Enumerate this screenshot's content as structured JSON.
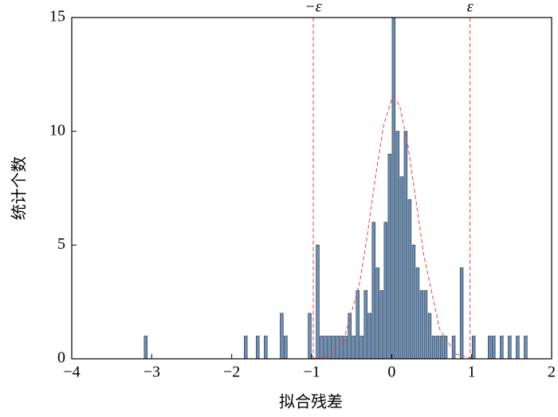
{
  "chart_data": {
    "type": "histogram",
    "xlabel": "拟合残差",
    "ylabel": "统计个数",
    "bins": [
      -3.1,
      -3.05,
      -3,
      -2.95,
      -2.9,
      -2.85,
      -2.8,
      -2.75,
      -2.7,
      -2.65,
      -2.6,
      -2.55,
      -2.5,
      -2.45,
      -2.4,
      -2.35,
      -2.3,
      -2.25,
      -2.2,
      -2.15,
      -2.1,
      -2.05,
      -2,
      -1.95,
      -1.9,
      -1.85,
      -1.8,
      -1.75,
      -1.7,
      -1.65,
      -1.6,
      -1.55,
      -1.5,
      -1.45,
      -1.4,
      -1.35,
      -1.3,
      -1.25,
      -1.2,
      -1.15,
      -1.1,
      -1.05,
      -1,
      -0.95,
      -0.9,
      -0.85,
      -0.8,
      -0.75,
      -0.7,
      -0.65,
      -0.6,
      -0.55,
      -0.5,
      -0.45,
      -0.4,
      -0.35,
      -0.3,
      -0.25,
      -0.2,
      -0.15,
      -0.1,
      -0.05,
      0,
      0.05,
      0.1,
      0.15,
      0.2,
      0.25,
      0.3,
      0.35,
      0.4,
      0.45,
      0.5,
      0.55,
      0.6,
      0.65,
      0.7,
      0.75,
      0.8,
      0.85,
      0.9,
      0.95,
      1,
      1.05,
      1.1,
      1.15,
      1.2,
      1.25,
      1.3,
      1.35,
      1.4,
      1.45,
      1.5,
      1.55,
      1.6,
      1.65,
      1.7
    ],
    "counts": [
      1,
      0,
      0,
      0,
      0,
      0,
      0,
      0,
      0,
      0,
      0,
      0,
      0,
      0,
      0,
      0,
      0,
      0,
      0,
      0,
      0,
      0,
      0,
      0,
      0,
      1,
      0,
      0,
      1,
      0,
      1,
      0,
      0,
      0,
      2,
      1,
      0,
      0,
      0,
      0,
      0,
      2,
      0,
      5,
      1,
      1,
      1,
      1,
      1,
      1,
      1,
      2,
      1,
      3,
      1,
      3,
      2,
      6,
      4,
      3,
      6,
      9,
      15,
      10,
      8,
      10,
      7,
      5,
      4,
      3,
      3,
      2,
      1,
      1,
      1,
      1,
      0,
      1,
      0,
      4,
      0,
      0,
      1,
      0,
      0,
      0,
      1,
      1,
      0,
      1,
      0,
      1,
      0,
      1,
      0,
      1
    ],
    "color": "#6b8fb8",
    "edgecolor": "#1a2a3a",
    "curve": {
      "color": "#e8434b",
      "x": [
        -1,
        -0.8,
        -0.6,
        -0.4,
        -0.3,
        -0.2,
        -0.1,
        0,
        0.03,
        0.1,
        0.2,
        0.3,
        0.4,
        0.6,
        0.8,
        1
      ],
      "y": [
        0.01,
        0.11,
        0.8,
        3.33,
        5.54,
        8.06,
        10.27,
        11.4,
        11.5,
        11.13,
        9.47,
        7.05,
        4.59,
        1.3,
        0.21,
        0.02
      ]
    },
    "vlines": [
      {
        "x": -0.98,
        "label": "−ε",
        "color": "#e8434b"
      },
      {
        "x": 0.98,
        "label": "ε",
        "color": "#e8434b"
      }
    ],
    "xlim": [
      -4,
      2
    ],
    "xticks": [
      {
        "value": -4,
        "label": "−4"
      },
      {
        "value": -3,
        "label": "−3"
      },
      {
        "value": -2,
        "label": "−2"
      },
      {
        "value": -1,
        "label": "−1"
      },
      0,
      1,
      2
    ],
    "ylim": [
      0,
      15
    ],
    "yticks": [
      0,
      5,
      10,
      15
    ]
  }
}
